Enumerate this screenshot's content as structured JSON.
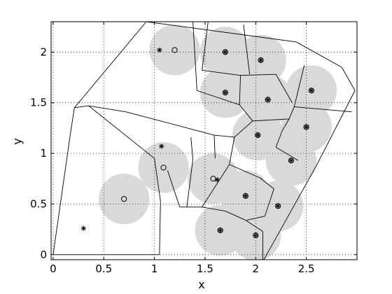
{
  "chart_data": {
    "type": "scatter",
    "title": "",
    "xlabel": "x",
    "ylabel": "y",
    "xlim": [
      -0.02,
      3.0
    ],
    "ylim": [
      -0.05,
      2.3
    ],
    "xticks": [
      0,
      0.5,
      1,
      1.5,
      2,
      2.5
    ],
    "yticks": [
      0,
      0.5,
      1,
      1.5,
      2
    ],
    "xtick_labels": [
      "0",
      "0.5",
      "1",
      "1.5",
      "2",
      "2.5"
    ],
    "ytick_labels": [
      "0",
      "0.5",
      "1",
      "1.5",
      "2"
    ],
    "grid": true,
    "coverage_radius": 0.25,
    "colors": {
      "disk": "#d9d9d9",
      "marker": "#000000",
      "cell_edge": "#000000",
      "grid": "#000000"
    },
    "series": [
      {
        "marker": "circle",
        "points": [
          [
            1.2,
            2.02
          ],
          [
            0.7,
            0.55
          ],
          [
            1.09,
            0.86
          ],
          [
            1.58,
            0.75
          ],
          [
            1.7,
            2.0
          ],
          [
            2.05,
            1.92
          ],
          [
            1.7,
            1.6
          ],
          [
            2.12,
            1.53
          ],
          [
            2.55,
            1.62
          ],
          [
            2.02,
            1.18
          ],
          [
            2.5,
            1.26
          ],
          [
            2.35,
            0.93
          ],
          [
            1.9,
            0.58
          ],
          [
            2.22,
            0.48
          ],
          [
            1.65,
            0.24
          ],
          [
            2.0,
            0.19
          ]
        ]
      },
      {
        "marker": "star",
        "points": [
          [
            1.05,
            2.02
          ],
          [
            0.3,
            0.26
          ],
          [
            1.07,
            1.07
          ],
          [
            1.62,
            0.74
          ],
          [
            1.7,
            2.0
          ],
          [
            2.05,
            1.92
          ],
          [
            1.7,
            1.6
          ],
          [
            2.12,
            1.53
          ],
          [
            2.55,
            1.62
          ],
          [
            2.02,
            1.18
          ],
          [
            2.5,
            1.26
          ],
          [
            2.35,
            0.93
          ],
          [
            1.9,
            0.58
          ],
          [
            2.22,
            0.48
          ],
          [
            1.65,
            0.24
          ],
          [
            2.0,
            0.19
          ]
        ]
      }
    ],
    "voronoi_edges": [
      [
        [
          0.0,
          0.0
        ],
        [
          0.17,
          1.19
        ]
      ],
      [
        [
          0.17,
          1.19
        ],
        [
          0.21,
          1.45
        ]
      ],
      [
        [
          0.21,
          1.45
        ],
        [
          0.92,
          2.3
        ]
      ],
      [
        [
          0.92,
          2.3
        ],
        [
          2.4,
          2.1
        ]
      ],
      [
        [
          2.4,
          2.1
        ],
        [
          2.85,
          1.85
        ]
      ],
      [
        [
          2.85,
          1.85
        ],
        [
          2.98,
          1.62
        ]
      ],
      [
        [
          2.98,
          1.62
        ],
        [
          2.6,
          0.88
        ]
      ],
      [
        [
          2.6,
          0.88
        ],
        [
          2.08,
          -0.05
        ]
      ],
      [
        [
          0.0,
          0.0
        ],
        [
          1.05,
          0.0
        ]
      ],
      [
        [
          0.21,
          1.45
        ],
        [
          0.35,
          1.47
        ]
      ],
      [
        [
          0.35,
          1.47
        ],
        [
          0.72,
          1.41
        ]
      ],
      [
        [
          0.72,
          1.41
        ],
        [
          1.4,
          1.23
        ]
      ],
      [
        [
          0.35,
          1.47
        ],
        [
          1.0,
          0.95
        ]
      ],
      [
        [
          1.0,
          0.95
        ],
        [
          1.06,
          0.53
        ]
      ],
      [
        [
          1.06,
          0.53
        ],
        [
          1.05,
          0.0
        ]
      ],
      [
        [
          1.4,
          1.23
        ],
        [
          1.59,
          1.18
        ]
      ],
      [
        [
          1.59,
          1.18
        ],
        [
          1.6,
          0.95
        ]
      ],
      [
        [
          1.59,
          1.18
        ],
        [
          1.79,
          1.16
        ]
      ],
      [
        [
          1.79,
          1.16
        ],
        [
          1.97,
          1.32
        ]
      ],
      [
        [
          1.79,
          1.16
        ],
        [
          1.74,
          0.89
        ]
      ],
      [
        [
          1.74,
          0.89
        ],
        [
          1.47,
          0.47
        ]
      ],
      [
        [
          1.74,
          0.89
        ],
        [
          2.06,
          0.75
        ]
      ],
      [
        [
          1.32,
          0.47
        ],
        [
          1.38,
          0.94
        ]
      ],
      [
        [
          1.38,
          0.94
        ],
        [
          1.36,
          1.16
        ]
      ],
      [
        [
          1.25,
          0.47
        ],
        [
          1.13,
          0.83
        ]
      ],
      [
        [
          1.25,
          0.47
        ],
        [
          1.47,
          0.47
        ]
      ],
      [
        [
          1.47,
          0.47
        ],
        [
          1.7,
          0.43
        ]
      ],
      [
        [
          1.7,
          0.43
        ],
        [
          1.9,
          0.34
        ]
      ],
      [
        [
          1.9,
          0.34
        ],
        [
          2.07,
          0.23
        ]
      ],
      [
        [
          2.07,
          0.23
        ],
        [
          2.07,
          -0.05
        ]
      ],
      [
        [
          2.05,
          0.75
        ],
        [
          2.18,
          0.65
        ]
      ],
      [
        [
          2.18,
          0.65
        ],
        [
          2.09,
          0.38
        ]
      ],
      [
        [
          2.09,
          0.38
        ],
        [
          1.91,
          0.34
        ]
      ],
      [
        [
          1.97,
          1.32
        ],
        [
          2.33,
          1.34
        ]
      ],
      [
        [
          2.33,
          1.34
        ],
        [
          2.26,
          1.22
        ]
      ],
      [
        [
          2.26,
          1.22
        ],
        [
          2.2,
          1.06
        ]
      ],
      [
        [
          2.2,
          1.06
        ],
        [
          2.42,
          0.93
        ]
      ],
      [
        [
          2.33,
          1.34
        ],
        [
          2.38,
          1.46
        ]
      ],
      [
        [
          2.38,
          1.46
        ],
        [
          2.48,
          1.87
        ]
      ],
      [
        [
          2.38,
          1.46
        ],
        [
          2.95,
          1.41
        ]
      ],
      [
        [
          1.97,
          1.32
        ],
        [
          1.84,
          1.48
        ]
      ],
      [
        [
          1.84,
          1.48
        ],
        [
          1.85,
          1.77
        ]
      ],
      [
        [
          1.84,
          1.48
        ],
        [
          1.42,
          1.62
        ]
      ],
      [
        [
          1.85,
          1.77
        ],
        [
          1.47,
          1.82
        ]
      ],
      [
        [
          1.85,
          1.77
        ],
        [
          2.2,
          1.78
        ]
      ],
      [
        [
          1.47,
          1.82
        ],
        [
          1.53,
          2.3
        ]
      ],
      [
        [
          1.88,
          2.27
        ],
        [
          1.94,
          1.78
        ]
      ],
      [
        [
          1.42,
          1.62
        ],
        [
          1.38,
          2.3
        ]
      ],
      [
        [
          2.2,
          1.78
        ],
        [
          2.36,
          1.5
        ]
      ]
    ]
  }
}
